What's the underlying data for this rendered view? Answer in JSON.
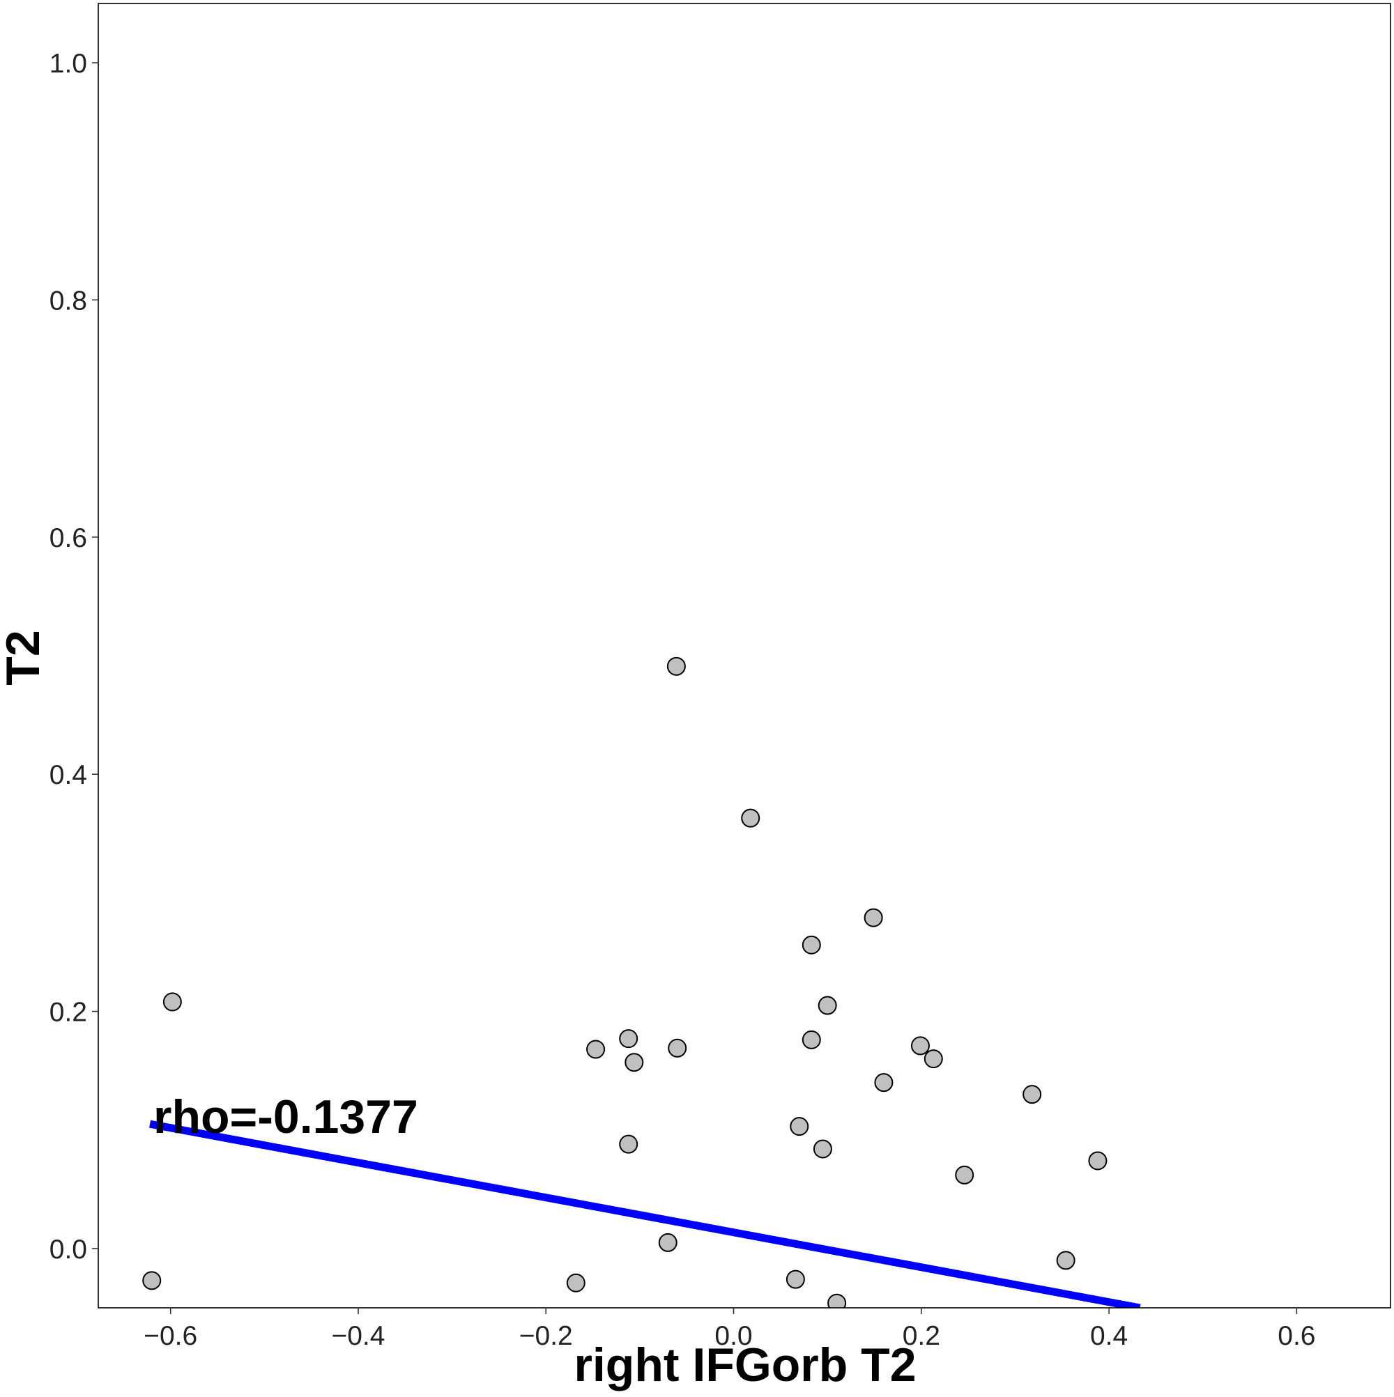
{
  "chart_data": {
    "type": "scatter",
    "xlabel": "right IFGorb T2",
    "ylabel": "T2",
    "xlim": [
      -0.677,
      0.7
    ],
    "ylim": [
      -0.05,
      1.05
    ],
    "x_ticks": [
      -0.6,
      -0.4,
      -0.2,
      0.0,
      0.2,
      0.4,
      0.6
    ],
    "x_tick_labels": [
      "−0.6",
      "−0.4",
      "−0.2",
      "0.0",
      "0.2",
      "0.4",
      "0.6"
    ],
    "y_ticks": [
      0.0,
      0.2,
      0.4,
      0.6,
      0.8,
      1.0
    ],
    "y_tick_labels": [
      "0.0",
      "0.2",
      "0.4",
      "0.6",
      "0.8",
      "1.0"
    ],
    "grid": false,
    "annotation": "rho=-0.1377",
    "point_fill": "#c0c0c0",
    "point_stroke": "#000000",
    "line_color": "#0000ff",
    "points": [
      {
        "x": -0.62,
        "y": -0.027
      },
      {
        "x": -0.598,
        "y": 0.208
      },
      {
        "x": -0.168,
        "y": -0.029
      },
      {
        "x": -0.147,
        "y": 0.168
      },
      {
        "x": -0.112,
        "y": 0.177
      },
      {
        "x": -0.106,
        "y": 0.157
      },
      {
        "x": -0.112,
        "y": 0.088
      },
      {
        "x": -0.07,
        "y": 0.005
      },
      {
        "x": -0.061,
        "y": 0.491
      },
      {
        "x": -0.06,
        "y": 0.169
      },
      {
        "x": 0.018,
        "y": 0.363
      },
      {
        "x": 0.066,
        "y": -0.026
      },
      {
        "x": 0.07,
        "y": 0.103
      },
      {
        "x": 0.083,
        "y": 0.256
      },
      {
        "x": 0.083,
        "y": 0.176
      },
      {
        "x": 0.095,
        "y": 0.084
      },
      {
        "x": 0.1,
        "y": 0.205
      },
      {
        "x": 0.11,
        "y": -0.046
      },
      {
        "x": 0.149,
        "y": 0.279
      },
      {
        "x": 0.16,
        "y": 0.14
      },
      {
        "x": 0.199,
        "y": 0.171
      },
      {
        "x": 0.213,
        "y": 0.16
      },
      {
        "x": 0.246,
        "y": 0.062
      },
      {
        "x": 0.318,
        "y": 0.13
      },
      {
        "x": 0.354,
        "y": -0.01
      },
      {
        "x": 0.388,
        "y": 0.074
      }
    ],
    "fit_line": {
      "x": [
        -0.622,
        0.433
      ],
      "y": [
        0.105,
        -0.05
      ]
    }
  }
}
